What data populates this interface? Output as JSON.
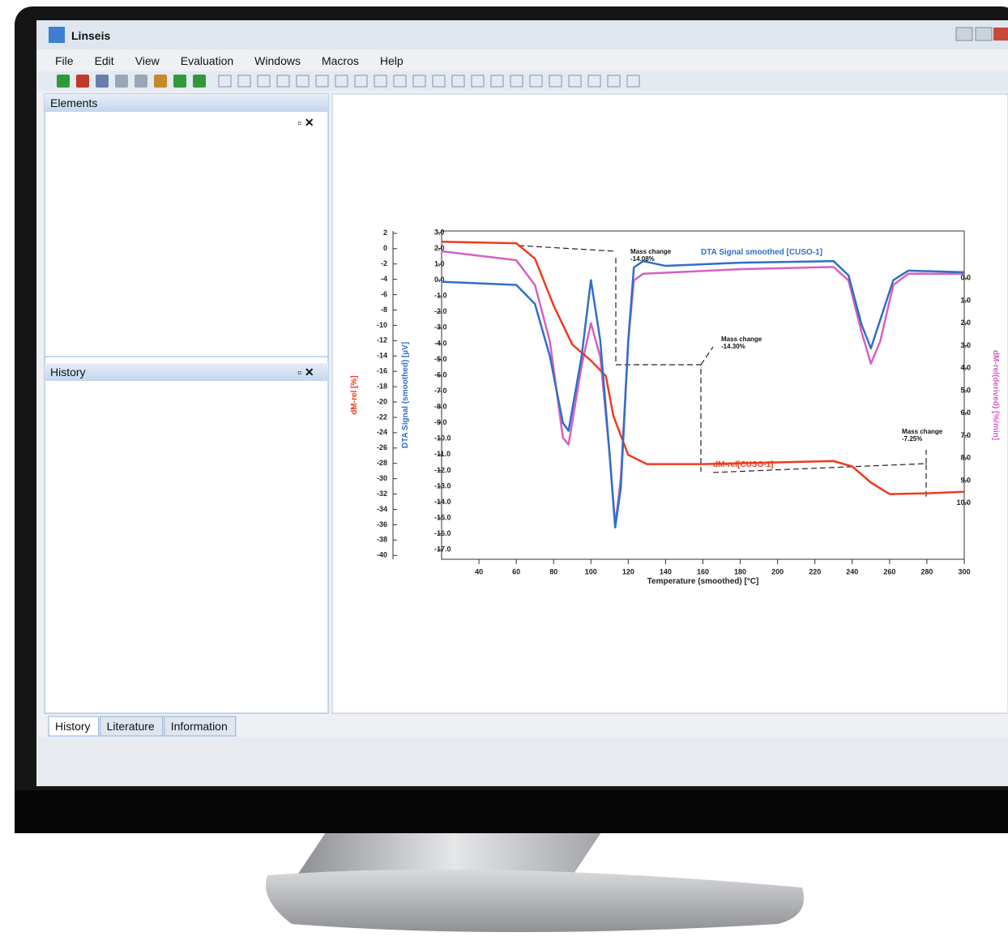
{
  "window": {
    "title": "Linseis"
  },
  "menu": [
    "File",
    "Edit",
    "View",
    "Evaluation",
    "Windows",
    "Macros",
    "Help"
  ],
  "panels": [
    "Elements",
    "History"
  ],
  "tabs": [
    "History",
    "Literature",
    "Information"
  ],
  "chart_data": {
    "type": "line",
    "xlabel": "Temperature (smoothed) [°C]",
    "ylabel": "dM-rel [%]",
    "y2label": "DTA Signal (smoothed) [µV]",
    "y3label": "dM-rel(derived) [%/min]",
    "xlim": [
      20,
      300
    ],
    "xticks": [
      40,
      60,
      80,
      100,
      120,
      140,
      160,
      180,
      200,
      220,
      240,
      260,
      280,
      300
    ],
    "ylim": [
      -40.5,
      2.3
    ],
    "yticks": [
      2,
      0,
      -2,
      -4,
      -6,
      -8,
      -10,
      -12,
      -14,
      -16,
      -18,
      -20,
      -22,
      -24,
      -26,
      -28,
      -30,
      -32,
      -34,
      -36,
      -38,
      -40
    ],
    "y2lim": [
      -17.6,
      3.1
    ],
    "y2ticks": [
      {
        "value": 3,
        "label": "3.0"
      },
      {
        "value": 2,
        "label": "2.0"
      },
      {
        "value": 1,
        "label": "1.0"
      },
      {
        "value": 0,
        "label": "0.0"
      },
      {
        "value": -1,
        "label": "-1.0"
      },
      {
        "value": -2,
        "label": "-2.0"
      },
      {
        "value": -3,
        "label": "-3.0"
      },
      {
        "value": -4,
        "label": "-4.0"
      },
      {
        "value": -5,
        "label": "-5.0"
      },
      {
        "value": -6,
        "label": "-6.0"
      },
      {
        "value": -7,
        "label": "-7.0"
      },
      {
        "value": -8,
        "label": "-8.0"
      },
      {
        "value": -9,
        "label": "-9.0"
      },
      {
        "value": -10,
        "label": "-10.0"
      },
      {
        "value": -11,
        "label": "-11.0"
      },
      {
        "value": -12,
        "label": "-12.0"
      },
      {
        "value": -13,
        "label": "-13.0"
      },
      {
        "value": -14,
        "label": "-14.0"
      },
      {
        "value": -15,
        "label": "-15.0"
      },
      {
        "value": -16,
        "label": "-16.0"
      },
      {
        "value": -17,
        "label": "-17.0"
      }
    ],
    "y3lim": [
      12.5,
      -2.1
    ],
    "y3ticks": [
      {
        "value": 0,
        "label": "0.0"
      },
      {
        "value": 1,
        "label": "1.0"
      },
      {
        "value": 2,
        "label": "2.0"
      },
      {
        "value": 3,
        "label": "3.0"
      },
      {
        "value": 4,
        "label": "4.0"
      },
      {
        "value": 5,
        "label": "5.0"
      },
      {
        "value": 6,
        "label": "6.0"
      },
      {
        "value": 7,
        "label": "7.0"
      },
      {
        "value": 8,
        "label": "8.0"
      },
      {
        "value": 9,
        "label": "9.0"
      },
      {
        "value": 10,
        "label": "10.0"
      }
    ],
    "series": [
      {
        "name": "DTA Signal smoothed [CUSO-1]",
        "color": "#2f6fc6",
        "axis": "y2",
        "x": [
          20,
          60,
          70,
          78,
          85,
          88,
          95,
          100,
          105,
          110,
          113,
          116,
          120,
          123,
          128,
          140,
          180,
          230,
          238,
          245,
          250,
          255,
          262,
          270,
          300
        ],
        "values": [
          -0.1,
          -0.3,
          -1.5,
          -4.8,
          -9.0,
          -9.5,
          -4.8,
          0.0,
          -3.8,
          -11.0,
          -15.6,
          -13.1,
          -3.8,
          0.8,
          1.2,
          0.9,
          1.1,
          1.2,
          0.3,
          -2.8,
          -4.3,
          -2.5,
          0.0,
          0.6,
          0.5
        ]
      },
      {
        "name": "dM-rel[CUSO-1]",
        "color": "#f03a1e",
        "axis": "y",
        "x": [
          20,
          60,
          70,
          80,
          90,
          100,
          108,
          112,
          120,
          130,
          160,
          230,
          240,
          250,
          260,
          280,
          300
        ],
        "values": [
          0.9,
          0.7,
          -1.3,
          -7.4,
          -12.5,
          -14.6,
          -16.6,
          -21.8,
          -26.9,
          -28.1,
          -28.1,
          -27.7,
          -28.4,
          -30.5,
          -32.0,
          -31.9,
          -31.7
        ]
      },
      {
        "color": "#d660c0",
        "axis": "y3",
        "x": [
          20,
          60,
          70,
          78,
          85,
          88,
          95,
          100,
          105,
          110,
          113,
          116,
          120,
          123,
          128,
          180,
          230,
          238,
          245,
          250,
          255,
          262,
          270,
          300
        ],
        "values": [
          -1.2,
          -0.8,
          0.3,
          2.8,
          7.1,
          7.4,
          3.9,
          2.0,
          3.5,
          7.8,
          11.0,
          8.9,
          2.8,
          0.1,
          -0.2,
          -0.4,
          -0.5,
          0.1,
          2.4,
          3.8,
          2.8,
          0.3,
          -0.2,
          -0.2
        ]
      }
    ],
    "annotations": [
      [
        "Mass change",
        "-14.08%"
      ],
      [
        "Mass change",
        "-14.30%"
      ],
      [
        "Mass change",
        "-7.25%"
      ]
    ]
  }
}
